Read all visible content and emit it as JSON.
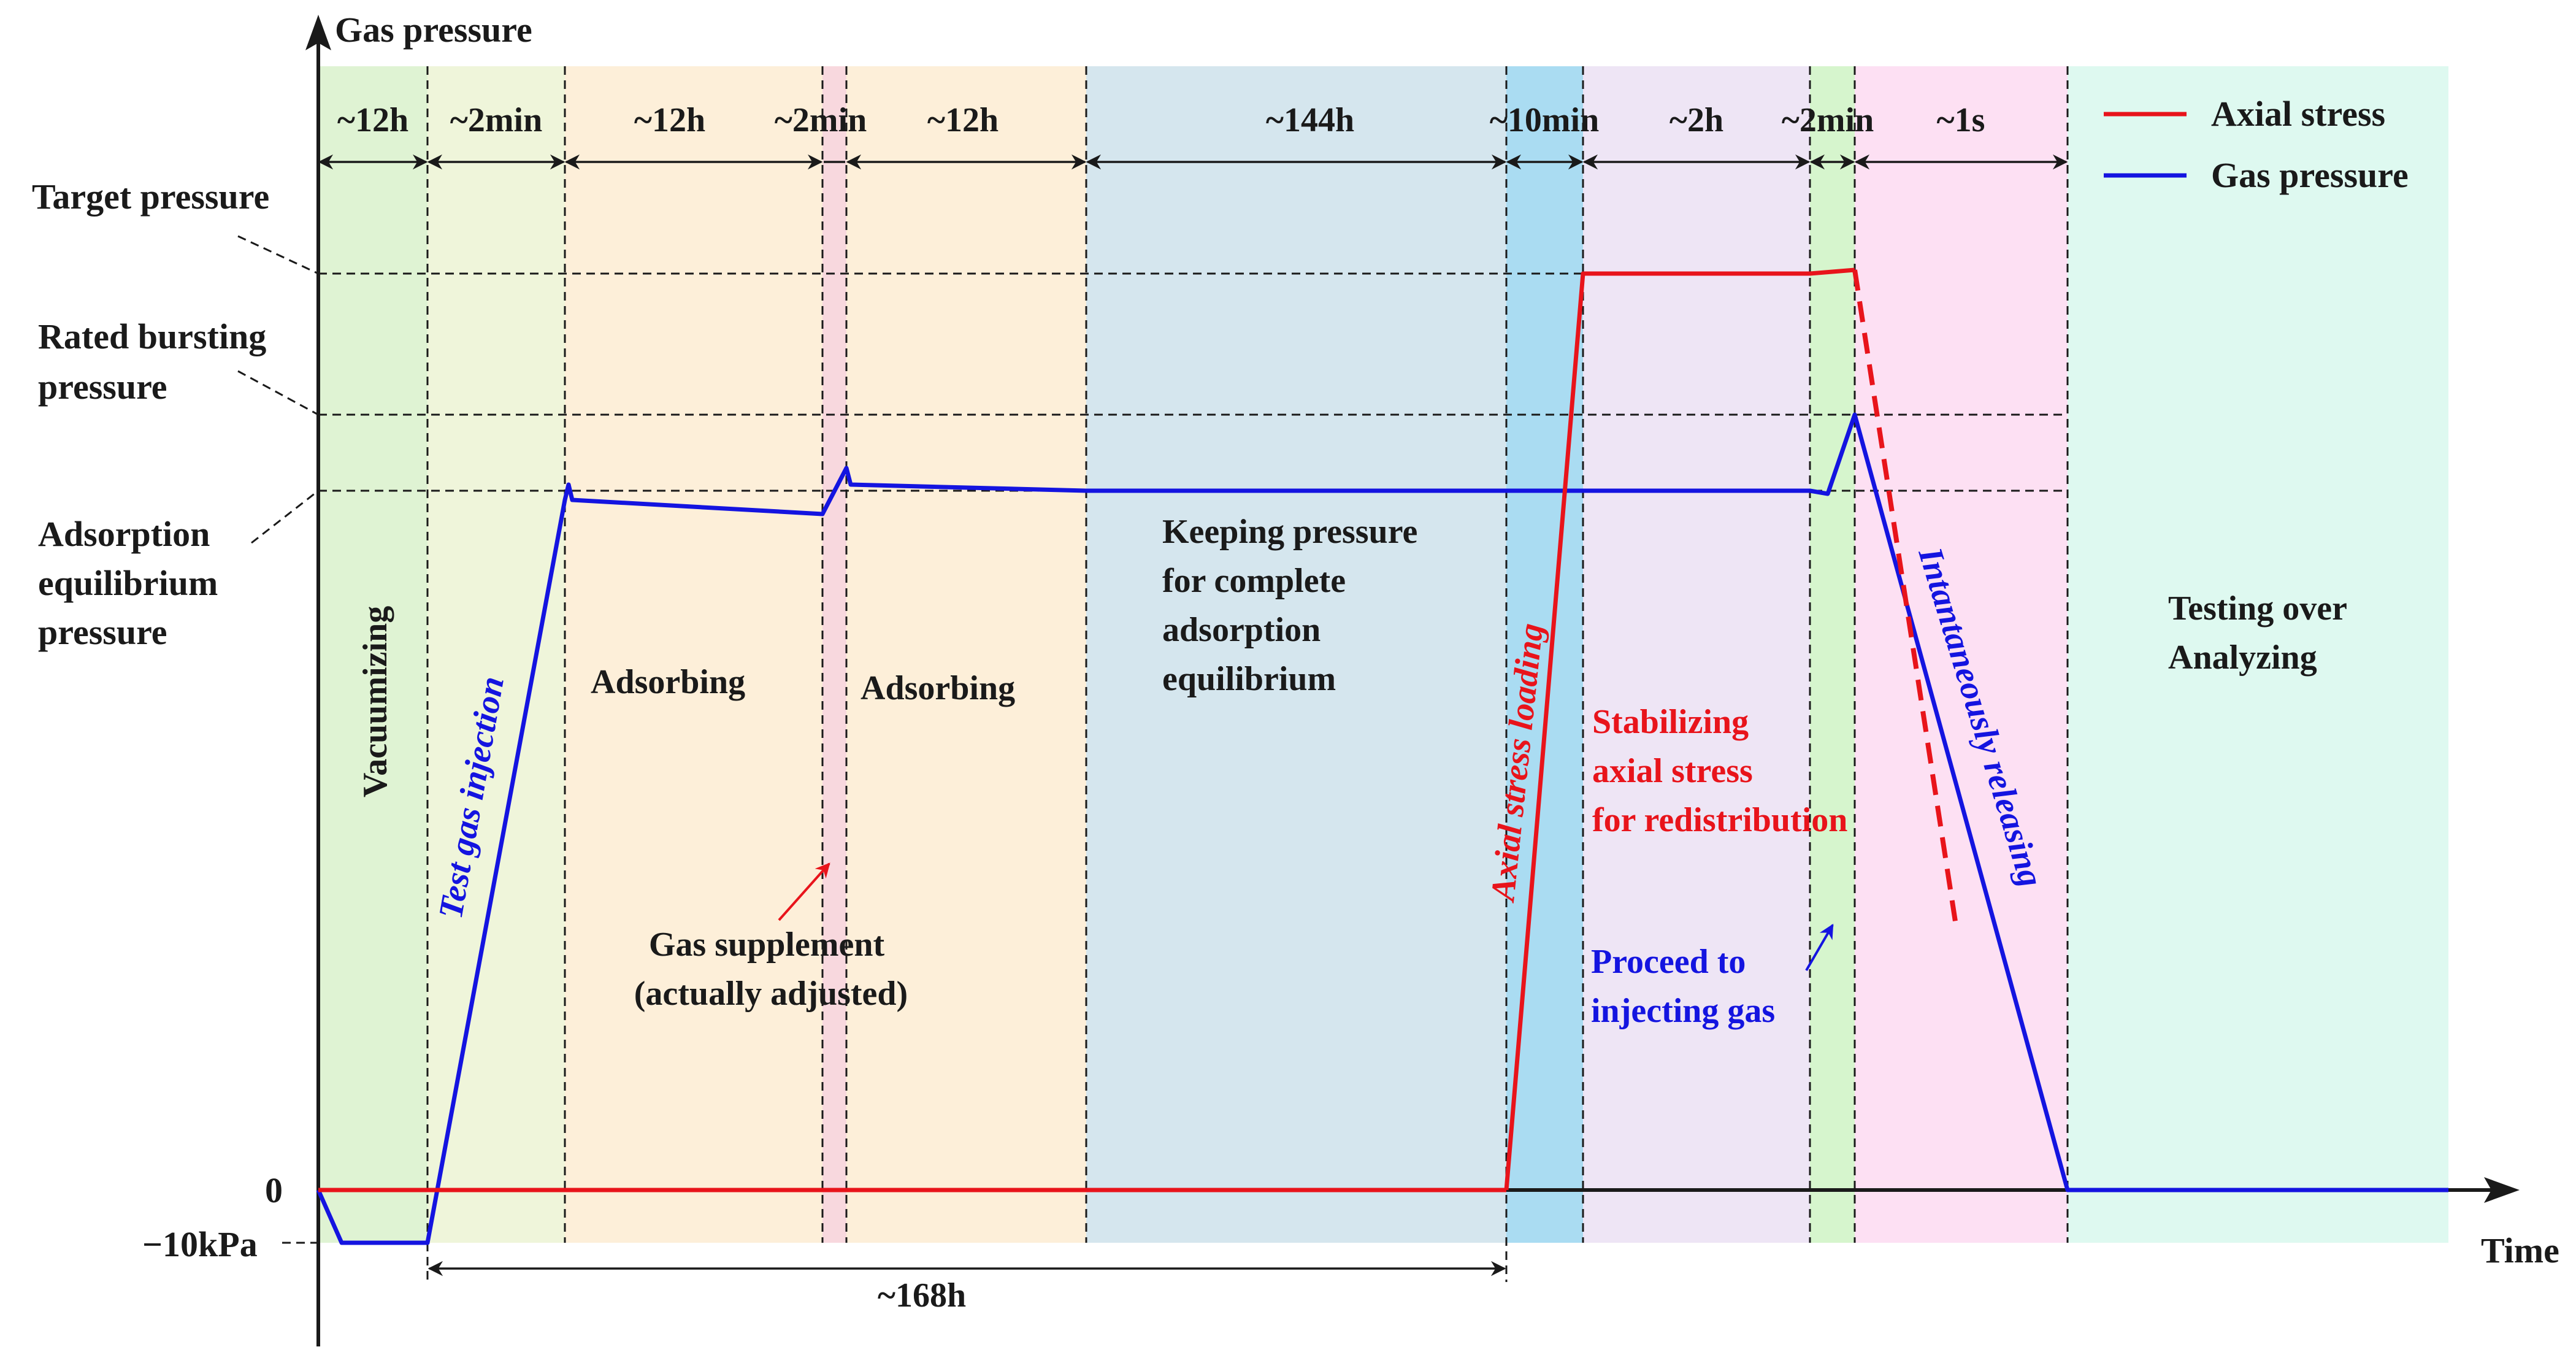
{
  "axes": {
    "y_title": "Gas pressure",
    "x_title": "Time",
    "y_ticks": {
      "target": "Target pressure",
      "rated": [
        "Rated bursting",
        "pressure"
      ],
      "adsorption": [
        "Adsorption",
        "equilibrium",
        "pressure"
      ],
      "zero": "0",
      "negative": "−10kPa"
    }
  },
  "legend": {
    "axial": {
      "label": "Axial stress",
      "color": "#e8141b"
    },
    "gas": {
      "label": "Gas pressure",
      "color": "#1414e0"
    }
  },
  "durations": [
    "~12h",
    "~2min",
    "~12h",
    "~2min",
    "~12h",
    "~144h",
    "~10min",
    "~2h",
    "~2min",
    "~1s"
  ],
  "total_duration": "~168h",
  "phases": {
    "vacuumizing": "Vacuumizing",
    "injection": "Test gas injection",
    "adsorbing_1": "Adsorbing",
    "adsorbing_2": "Adsorbing",
    "keeping": [
      "Keeping pressure",
      "for complete",
      "adsorption",
      "equilibrium"
    ],
    "axial_loading": "Axial stress loading",
    "stabilizing": [
      "Stabilizing",
      "axial stress",
      "for redistribution"
    ],
    "releasing": "Intantaneously releasing",
    "testing": [
      "Testing over",
      "Analyzing"
    ]
  },
  "annotations": {
    "supplement": [
      "Gas supplement",
      "(actually adjusted)"
    ],
    "proceed": [
      "Proceed to",
      "injecting gas"
    ]
  },
  "colors": {
    "vacuumizing": "#dff3d3",
    "injection": "#eff5da",
    "adsorbing": "#fdefd9",
    "supplement": "#f8d8de",
    "keeping": "#d5e6ee",
    "loading": "#aadcf2",
    "stabilizing": "#eee5f5",
    "proceed": "#d6f5cd",
    "releasing": "#fde0f3",
    "testing": "#def9f0",
    "text_black": "#1a1a1a",
    "text_red": "#e8141b",
    "text_blue": "#1414e0"
  }
}
